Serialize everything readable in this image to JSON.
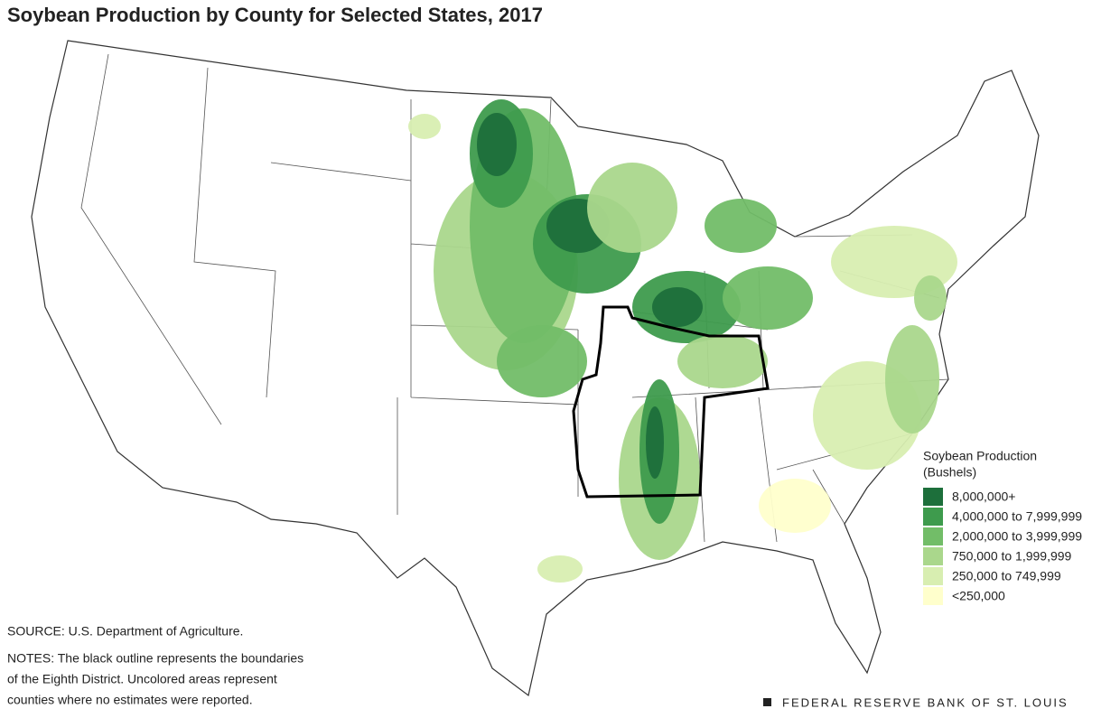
{
  "header": {
    "title": "Soybean Production by County for Selected States, 2017"
  },
  "legend": {
    "title_lines": [
      "Soybean Production",
      "(Bushels)"
    ],
    "items": [
      {
        "label": "8,000,000+",
        "color": "#1d6f3b"
      },
      {
        "label": "4,000,000 to 7,999,999",
        "color": "#3e9b4d"
      },
      {
        "label": "2,000,000 to 3,999,999",
        "color": "#72bd68"
      },
      {
        "label": "750,000 to 1,999,999",
        "color": "#aad78c"
      },
      {
        "label": "250,000 to 749,999",
        "color": "#d8eeb1"
      },
      {
        "label": "<250,000",
        "color": "#ffffcc"
      }
    ]
  },
  "source": "SOURCE: U.S. Department of Agriculture.",
  "notes": [
    "NOTES: The black outline represents the boundaries",
    "of the Eighth District. Uncolored areas represent",
    "counties where no estimates were reported."
  ],
  "footer": "FEDERAL RESERVE BANK OF ST. LOUIS"
}
